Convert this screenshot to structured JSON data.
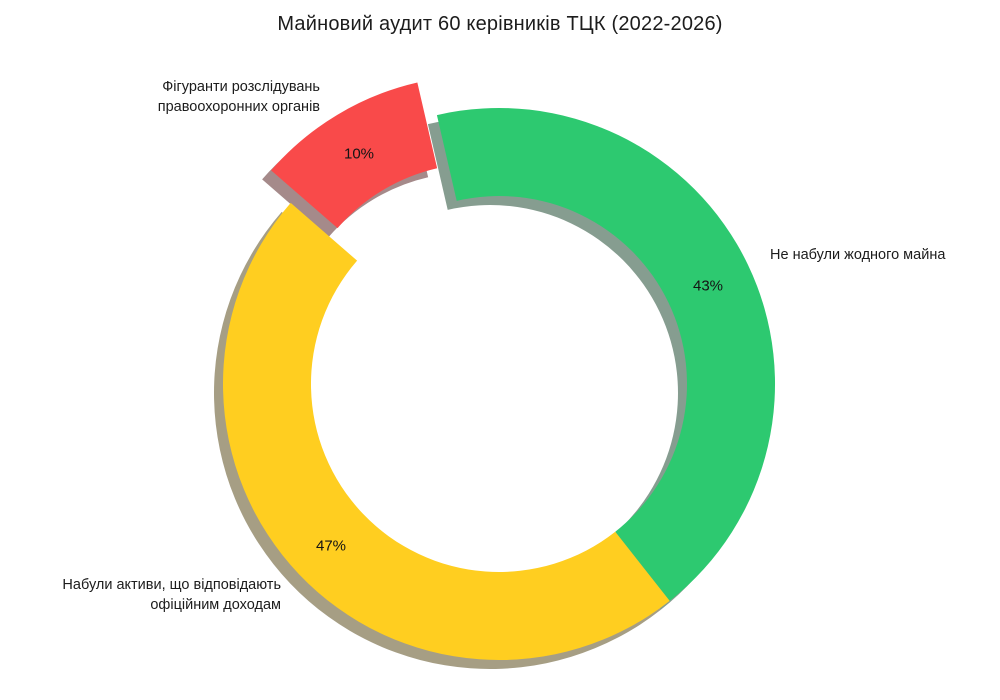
{
  "title": "Майновий аудит 60 керівників ТЦК (2022-2026)",
  "chart_data": {
    "type": "pie",
    "subtype": "donut",
    "title": "Майновий аудит 60 керівників ТЦК (2022-2026)",
    "units": "percent",
    "background_color": "#ffffff",
    "text_color": "#1c1c1c",
    "shadow": true,
    "clockwise": true,
    "start_angle_deg": 103,
    "legend": "none",
    "slices": [
      {
        "name": "no-assets",
        "label": "Не набули жодного майна",
        "label_lines": [
          "Не набули жодного майна"
        ],
        "value": 43,
        "pct_label": "43%",
        "color": "#2dc970",
        "explode": 0
      },
      {
        "name": "assets-match-income",
        "label": "Набули активи, що відповідають офіційним доходам",
        "label_lines": [
          "Набули активи, що відповідають",
          "офіційним доходам"
        ],
        "value": 47,
        "pct_label": "47%",
        "color": "#ffce20",
        "explode": 0
      },
      {
        "name": "under-investigation",
        "label": "Фігуранти розслідувань правоохоронних органів",
        "label_lines": [
          "Фігуранти розслідувань",
          "правоохоронних органів"
        ],
        "value": 10,
        "pct_label": "10%",
        "color": "#f94a4a",
        "explode": 38
      }
    ]
  }
}
